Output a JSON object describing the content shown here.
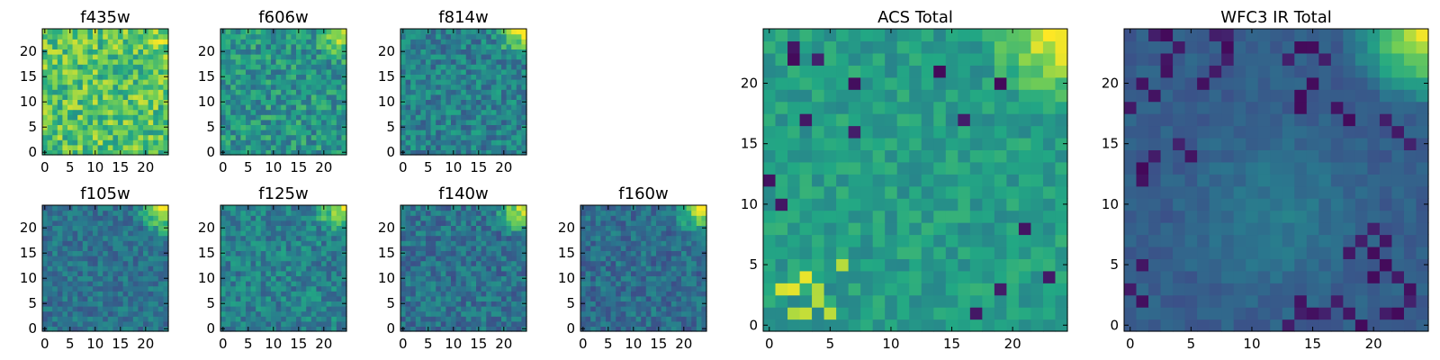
{
  "figure": {
    "description_hidden": ""
  },
  "colormap": {
    "name": "viridis",
    "stops": [
      "#440154",
      "#414487",
      "#2a788e",
      "#22a884",
      "#7ad151",
      "#fde725"
    ]
  },
  "chart_data": [
    {
      "type": "heatmap",
      "panel": "small",
      "title": "f435w",
      "grid": [
        25,
        25
      ],
      "xlim": [
        -0.5,
        24.5
      ],
      "ylim": [
        -0.5,
        24.5
      ],
      "xticks": [
        0,
        5,
        10,
        15,
        20
      ],
      "yticks": [
        0,
        5,
        10,
        15,
        20
      ],
      "seed": 11,
      "mean": 0.72,
      "noise": 0.42,
      "corner": 0.12,
      "center": 0.0,
      "bright_cells": [],
      "dark_cells": []
    },
    {
      "type": "heatmap",
      "panel": "small",
      "title": "f606w",
      "grid": [
        25,
        25
      ],
      "xlim": [
        -0.5,
        24.5
      ],
      "ylim": [
        -0.5,
        24.5
      ],
      "xticks": [
        0,
        5,
        10,
        15,
        20
      ],
      "yticks": [
        0,
        5,
        10,
        15,
        20
      ],
      "seed": 23,
      "mean": 0.52,
      "noise": 0.36,
      "corner": 0.45,
      "center": 0.0,
      "bright_cells": [],
      "dark_cells": []
    },
    {
      "type": "heatmap",
      "panel": "small",
      "title": "f814w",
      "grid": [
        25,
        25
      ],
      "xlim": [
        -0.5,
        24.5
      ],
      "ylim": [
        -0.5,
        24.5
      ],
      "xticks": [
        0,
        5,
        10,
        15,
        20
      ],
      "yticks": [
        0,
        5,
        10,
        15,
        20
      ],
      "seed": 37,
      "mean": 0.44,
      "noise": 0.32,
      "corner": 0.55,
      "center": 0.0,
      "bright_cells": [],
      "dark_cells": []
    },
    {
      "type": "heatmap",
      "panel": "small",
      "title": "f105w",
      "grid": [
        25,
        25
      ],
      "xlim": [
        -0.5,
        24.5
      ],
      "ylim": [
        -0.5,
        24.5
      ],
      "xticks": [
        0,
        5,
        10,
        15,
        20
      ],
      "yticks": [
        0,
        5,
        10,
        15,
        20
      ],
      "seed": 41,
      "mean": 0.38,
      "noise": 0.24,
      "corner": 0.62,
      "center": 0.0,
      "bright_cells": [],
      "dark_cells": []
    },
    {
      "type": "heatmap",
      "panel": "small",
      "title": "f125w",
      "grid": [
        25,
        25
      ],
      "xlim": [
        -0.5,
        24.5
      ],
      "ylim": [
        -0.5,
        24.5
      ],
      "xticks": [
        0,
        5,
        10,
        15,
        20
      ],
      "yticks": [
        0,
        5,
        10,
        15,
        20
      ],
      "seed": 53,
      "mean": 0.44,
      "noise": 0.3,
      "corner": 0.55,
      "center": 0.0,
      "bright_cells": [],
      "dark_cells": []
    },
    {
      "type": "heatmap",
      "panel": "small",
      "title": "f140w",
      "grid": [
        25,
        25
      ],
      "xlim": [
        -0.5,
        24.5
      ],
      "ylim": [
        -0.5,
        24.5
      ],
      "xticks": [
        0,
        5,
        10,
        15,
        20
      ],
      "yticks": [
        0,
        5,
        10,
        15,
        20
      ],
      "seed": 67,
      "mean": 0.38,
      "noise": 0.28,
      "corner": 0.62,
      "center": 0.0,
      "bright_cells": [],
      "dark_cells": []
    },
    {
      "type": "heatmap",
      "panel": "small",
      "title": "f160w",
      "grid": [
        25,
        25
      ],
      "xlim": [
        -0.5,
        24.5
      ],
      "ylim": [
        -0.5,
        24.5
      ],
      "xticks": [
        0,
        5,
        10,
        15,
        20
      ],
      "yticks": [
        0,
        5,
        10,
        15,
        20
      ],
      "seed": 79,
      "mean": 0.36,
      "noise": 0.26,
      "corner": 0.66,
      "center": 0.0,
      "bright_cells": [],
      "dark_cells": []
    },
    {
      "type": "heatmap",
      "panel": "large",
      "title": "ACS Total",
      "grid": [
        25,
        25
      ],
      "xlim": [
        -0.5,
        24.5
      ],
      "ylim": [
        -0.5,
        24.5
      ],
      "xticks": [
        0,
        5,
        10,
        15,
        20
      ],
      "yticks": [
        0,
        5,
        10,
        15,
        20
      ],
      "seed": 97,
      "mean": 0.55,
      "noise": 0.2,
      "corner": 0.5,
      "center": 0.0,
      "bright_cells": [
        [
          2,
          1
        ],
        [
          3,
          1
        ],
        [
          4,
          2
        ],
        [
          5,
          1
        ],
        [
          1,
          3
        ],
        [
          2,
          3
        ],
        [
          3,
          4
        ],
        [
          4,
          3
        ],
        [
          6,
          5
        ]
      ],
      "dark_cells": [
        [
          19,
          3
        ],
        [
          4,
          22
        ],
        [
          7,
          20
        ],
        [
          14,
          21
        ],
        [
          21,
          8
        ],
        [
          0,
          12
        ],
        [
          1,
          10
        ],
        [
          7,
          16
        ],
        [
          16,
          17
        ],
        [
          17,
          1
        ],
        [
          2,
          23
        ],
        [
          2,
          22
        ],
        [
          3,
          17
        ],
        [
          19,
          20
        ],
        [
          23,
          4
        ]
      ]
    },
    {
      "type": "heatmap",
      "panel": "large",
      "title": "WFC3 IR Total",
      "grid": [
        25,
        25
      ],
      "xlim": [
        -0.5,
        24.5
      ],
      "ylim": [
        -0.5,
        24.5
      ],
      "xticks": [
        0,
        5,
        10,
        15,
        20
      ],
      "yticks": [
        0,
        5,
        10,
        15,
        20
      ],
      "seed": 113,
      "mean": 0.3,
      "noise": 0.1,
      "corner": 0.7,
      "center": 0.12,
      "bright_cells": [],
      "dark_cells": [
        [
          23,
          2
        ],
        [
          23,
          3
        ],
        [
          22,
          4
        ],
        [
          21,
          5
        ],
        [
          20,
          4
        ],
        [
          20,
          8
        ],
        [
          19,
          7
        ],
        [
          18,
          6
        ],
        [
          8,
          22
        ],
        [
          8,
          23
        ],
        [
          7,
          24
        ],
        [
          8,
          24
        ],
        [
          0,
          18
        ],
        [
          2,
          19
        ],
        [
          1,
          20
        ],
        [
          2,
          14
        ],
        [
          5,
          14
        ],
        [
          4,
          15
        ],
        [
          1,
          2
        ],
        [
          0,
          3
        ],
        [
          1,
          5
        ],
        [
          2,
          24
        ],
        [
          3,
          24
        ],
        [
          4,
          23
        ],
        [
          3,
          22
        ],
        [
          3,
          21
        ],
        [
          1,
          12
        ],
        [
          1,
          13
        ],
        [
          21,
          7
        ],
        [
          20,
          6
        ],
        [
          22,
          16
        ],
        [
          23,
          15
        ],
        [
          21,
          17
        ],
        [
          14,
          18
        ],
        [
          14,
          19
        ],
        [
          15,
          20
        ],
        [
          17,
          18
        ],
        [
          18,
          17
        ],
        [
          13,
          22
        ],
        [
          14,
          23
        ],
        [
          15,
          23
        ],
        [
          16,
          22
        ],
        [
          6,
          20
        ],
        [
          7,
          21
        ],
        [
          14,
          2
        ],
        [
          15,
          1
        ],
        [
          16,
          1
        ],
        [
          17,
          2
        ],
        [
          18,
          1
        ],
        [
          19,
          0
        ],
        [
          13,
          0
        ],
        [
          14,
          1
        ],
        [
          22,
          1
        ],
        [
          21,
          1
        ]
      ]
    }
  ]
}
